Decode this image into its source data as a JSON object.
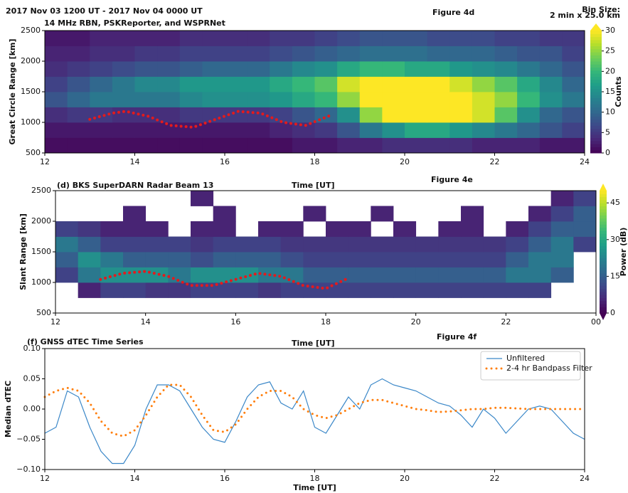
{
  "chart_data": [
    {
      "type": "heatmap",
      "title": "2017 Nov 03 1200 UT - 2017 Nov 04 0000 UT",
      "subtitle": "14 MHz RBN, PSKReporter, and WSPRNet",
      "figure_label": "Figure 4d",
      "bin_size_label": [
        "Bin Size:",
        "2 min x 25.0 km"
      ],
      "ylabel": "Great Circle Range [km]",
      "colorbar_label": "Counts",
      "colormap": "viridis",
      "xlim": [
        12,
        24
      ],
      "xticks": [
        12,
        14,
        16,
        18,
        20,
        22,
        24
      ],
      "ylim": [
        500,
        2500
      ],
      "yticks": [
        500,
        1000,
        1500,
        2000,
        2500
      ],
      "clim": [
        0,
        30
      ],
      "cticks": [
        0,
        5,
        10,
        15,
        20,
        25,
        30
      ],
      "xbins": [
        12,
        12.5,
        13,
        13.5,
        14,
        14.5,
        15,
        15.5,
        16,
        16.5,
        17,
        17.5,
        18,
        18.5,
        19,
        19.5,
        20,
        20.5,
        21,
        21.5,
        22,
        22.5,
        23,
        23.5,
        24
      ],
      "ybins": [
        500,
        750,
        1000,
        1250,
        1500,
        1750,
        2000,
        2250,
        2500
      ],
      "z": [
        [
          1,
          1,
          1,
          1,
          1,
          1,
          1,
          1,
          1,
          1,
          1,
          2,
          2,
          3,
          3,
          4,
          4,
          4,
          4,
          3,
          3,
          3,
          2,
          2
        ],
        [
          2,
          2,
          2,
          2,
          2,
          2,
          2,
          2,
          2,
          2,
          3,
          4,
          5,
          8,
          12,
          15,
          18,
          18,
          16,
          14,
          12,
          10,
          8,
          6
        ],
        [
          4,
          5,
          5,
          4,
          4,
          4,
          5,
          5,
          5,
          5,
          6,
          8,
          10,
          15,
          25,
          30,
          30,
          30,
          30,
          28,
          22,
          15,
          10,
          8
        ],
        [
          8,
          10,
          12,
          12,
          12,
          12,
          14,
          15,
          15,
          15,
          16,
          18,
          20,
          25,
          30,
          30,
          30,
          30,
          30,
          28,
          25,
          20,
          15,
          12
        ],
        [
          6,
          8,
          10,
          12,
          14,
          14,
          16,
          16,
          16,
          16,
          18,
          20,
          22,
          28,
          30,
          30,
          30,
          30,
          28,
          25,
          22,
          18,
          14,
          10
        ],
        [
          4,
          5,
          6,
          7,
          8,
          8,
          9,
          10,
          10,
          10,
          12,
          14,
          15,
          18,
          20,
          20,
          18,
          18,
          16,
          15,
          14,
          12,
          10,
          8
        ],
        [
          3,
          3,
          4,
          4,
          5,
          5,
          6,
          6,
          6,
          6,
          7,
          8,
          9,
          10,
          11,
          11,
          11,
          10,
          10,
          10,
          9,
          8,
          8,
          6
        ],
        [
          2,
          2,
          3,
          3,
          3,
          3,
          4,
          4,
          4,
          4,
          5,
          5,
          6,
          7,
          8,
          8,
          8,
          7,
          7,
          7,
          6,
          6,
          5,
          5
        ]
      ],
      "overlay": {
        "color": "#e41a1c",
        "linestyle": "dotted",
        "x": [
          13,
          13.5,
          13.8,
          14.3,
          14.8,
          15.3,
          15.8,
          16.3,
          16.8,
          17.3,
          17.8,
          18.4
        ],
        "values": [
          1050,
          1150,
          1180,
          1100,
          950,
          920,
          1050,
          1180,
          1150,
          1000,
          950,
          1130
        ]
      }
    },
    {
      "type": "heatmap",
      "title": "(d) BKS SuperDARN Radar Beam 13",
      "top_label": "Time [UT]",
      "figure_label": "Figure 4e",
      "ylabel": "Slant Range [km]",
      "colorbar_label": "Power (dB)",
      "colormap": "viridis",
      "xlim": [
        12,
        24
      ],
      "xticks": [
        12,
        14,
        16,
        18,
        20,
        22,
        {
          "value": 24,
          "label": "00"
        }
      ],
      "ylim": [
        500,
        2500
      ],
      "yticks": [
        500,
        1000,
        1500,
        2000,
        2500
      ],
      "clim": [
        0,
        50
      ],
      "cticks": [
        0,
        15,
        30,
        45
      ],
      "xbins": [
        12,
        12.5,
        13,
        13.5,
        14,
        14.5,
        15,
        15.5,
        16,
        16.5,
        17,
        17.5,
        18,
        18.5,
        19,
        19.5,
        20,
        20.5,
        21,
        21.5,
        22,
        22.5,
        23,
        23.5,
        24
      ],
      "ybins": [
        500,
        750,
        1000,
        1250,
        1500,
        1750,
        2000,
        2250,
        2500
      ],
      "z": [
        [
          null,
          null,
          null,
          null,
          null,
          null,
          null,
          null,
          null,
          null,
          null,
          null,
          null,
          null,
          null,
          null,
          null,
          null,
          null,
          null,
          null,
          null,
          null,
          null
        ],
        [
          null,
          5,
          10,
          10,
          8,
          8,
          10,
          10,
          10,
          8,
          10,
          10,
          10,
          10,
          10,
          10,
          10,
          10,
          10,
          10,
          10,
          10,
          null,
          null
        ],
        [
          10,
          20,
          25,
          25,
          25,
          20,
          25,
          25,
          25,
          20,
          20,
          15,
          15,
          15,
          15,
          15,
          15,
          15,
          15,
          15,
          20,
          20,
          15,
          null
        ],
        [
          15,
          25,
          20,
          15,
          15,
          15,
          12,
          15,
          15,
          15,
          12,
          10,
          10,
          10,
          10,
          10,
          10,
          10,
          10,
          10,
          15,
          20,
          20,
          null
        ],
        [
          20,
          15,
          10,
          10,
          10,
          10,
          8,
          10,
          10,
          10,
          8,
          8,
          8,
          8,
          8,
          8,
          8,
          8,
          8,
          8,
          10,
          15,
          20,
          10
        ],
        [
          10,
          8,
          5,
          5,
          5,
          null,
          5,
          5,
          null,
          5,
          5,
          null,
          5,
          5,
          null,
          5,
          null,
          5,
          5,
          null,
          5,
          10,
          15,
          15
        ],
        [
          null,
          null,
          null,
          5,
          null,
          null,
          null,
          5,
          null,
          null,
          null,
          5,
          null,
          null,
          5,
          null,
          null,
          null,
          5,
          null,
          null,
          5,
          10,
          15
        ],
        [
          null,
          null,
          null,
          null,
          null,
          null,
          5,
          null,
          null,
          null,
          null,
          null,
          null,
          null,
          null,
          null,
          null,
          null,
          null,
          null,
          null,
          null,
          5,
          10
        ]
      ],
      "overlay": {
        "color": "#e41a1c",
        "linestyle": "dotted",
        "x": [
          13,
          13.5,
          14,
          14.5,
          15,
          15.5,
          16,
          16.5,
          17,
          17.5,
          18,
          18.5
        ],
        "values": [
          1050,
          1150,
          1180,
          1100,
          950,
          950,
          1050,
          1150,
          1100,
          950,
          900,
          1070
        ]
      }
    },
    {
      "type": "line",
      "title": "(f) GNSS dTEC Time Series",
      "top_label": "Time [UT]",
      "figure_label": "Figure 4f",
      "xlabel": "Time [UT]",
      "ylabel": "Median dTEC",
      "legend": "upper right",
      "xlim": [
        12,
        24
      ],
      "xticks": [
        12,
        14,
        16,
        18,
        20,
        22,
        24
      ],
      "ylim": [
        -0.1,
        0.1
      ],
      "yticks": [
        {
          "value": -0.1,
          "label": "−0.10"
        },
        {
          "value": -0.05,
          "label": "−0.05"
        },
        {
          "value": 0,
          "label": "0.00"
        },
        0.05,
        {
          "value": 0.1,
          "label": "0.10"
        }
      ],
      "x": [
        12,
        12.25,
        12.5,
        12.75,
        13,
        13.25,
        13.5,
        13.75,
        14,
        14.25,
        14.5,
        14.75,
        15,
        15.25,
        15.5,
        15.75,
        16,
        16.25,
        16.5,
        16.75,
        17,
        17.25,
        17.5,
        17.75,
        18,
        18.25,
        18.5,
        18.75,
        19,
        19.25,
        19.5,
        19.75,
        20,
        20.25,
        20.5,
        20.75,
        21,
        21.25,
        21.5,
        21.75,
        22,
        22.25,
        22.5,
        22.75,
        23,
        23.25,
        23.5,
        23.75,
        24
      ],
      "series": [
        {
          "name": "Unfiltered",
          "color": "#3a87c8",
          "linestyle": "solid",
          "values": [
            -0.04,
            -0.03,
            0.03,
            0.02,
            -0.03,
            -0.07,
            -0.09,
            -0.09,
            -0.06,
            0.0,
            0.04,
            0.04,
            0.03,
            0.0,
            -0.03,
            -0.05,
            -0.055,
            -0.02,
            0.02,
            0.04,
            0.045,
            0.01,
            0.0,
            0.03,
            -0.03,
            -0.04,
            -0.01,
            0.02,
            0.0,
            0.04,
            0.05,
            0.04,
            0.035,
            0.03,
            0.02,
            0.01,
            0.005,
            -0.01,
            -0.03,
            0.0,
            -0.015,
            -0.04,
            -0.02,
            0.0,
            0.005,
            0.0,
            -0.02,
            -0.04,
            -0.05
          ]
        },
        {
          "name": "2-4 hr Bandpass Filter",
          "color": "#ff7f0e",
          "linestyle": "dotted",
          "values": [
            0.02,
            0.03,
            0.035,
            0.03,
            0.01,
            -0.02,
            -0.04,
            -0.045,
            -0.035,
            -0.01,
            0.02,
            0.04,
            0.04,
            0.02,
            -0.01,
            -0.035,
            -0.038,
            -0.025,
            0.0,
            0.02,
            0.03,
            0.03,
            0.02,
            0.0,
            -0.01,
            -0.015,
            -0.01,
            0.0,
            0.01,
            0.015,
            0.015,
            0.01,
            0.005,
            0.0,
            -0.002,
            -0.005,
            -0.004,
            -0.002,
            0.0,
            0.0,
            0.002,
            0.002,
            0.001,
            0.0,
            0.0,
            0.0,
            0.0,
            0.0,
            0.0
          ]
        }
      ]
    }
  ]
}
